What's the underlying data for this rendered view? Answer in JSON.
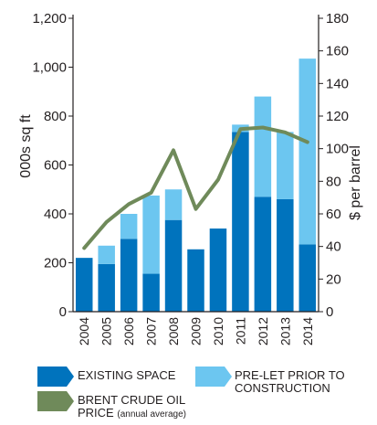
{
  "chart_data": {
    "type": "bar",
    "categories": [
      "2004",
      "2005",
      "2006",
      "2007",
      "2008",
      "2009",
      "2010",
      "2011",
      "2012",
      "2013",
      "2014"
    ],
    "series": [
      {
        "name": "EXISTING SPACE",
        "type": "bar",
        "axis": "left",
        "stack": "space",
        "values": [
          220,
          195,
          298,
          155,
          375,
          255,
          340,
          735,
          470,
          460,
          275
        ]
      },
      {
        "name": "PRE-LET PRIOR TO CONSTRUCTION",
        "type": "bar",
        "axis": "left",
        "stack": "space",
        "values": [
          0,
          75,
          102,
          320,
          125,
          0,
          0,
          30,
          410,
          275,
          760
        ]
      },
      {
        "name": "BRENT CRUDE OIL PRICE (annual average)",
        "type": "line",
        "axis": "right",
        "values": [
          39,
          55,
          66,
          73,
          99,
          63,
          81,
          112,
          113,
          110,
          104
        ]
      }
    ],
    "ylabel": "000s sq ft",
    "ylabel_right": "$ per barrel",
    "ylim": [
      0,
      1200
    ],
    "ylim_right": [
      0,
      180
    ],
    "yticks": [
      "0",
      "200",
      "400",
      "600",
      "800",
      "1,000",
      "1,200"
    ],
    "yticks_right": [
      "0",
      "20",
      "40",
      "60",
      "80",
      "100",
      "120",
      "140",
      "160",
      "180"
    ],
    "grid": false,
    "legend_position": "bottom",
    "colors": {
      "existing": "#0073bd",
      "prelet": "#6cc6f0",
      "oil": "#6f8a5a",
      "axis": "#231f20"
    }
  },
  "legend": {
    "existing": "EXISTING SPACE",
    "prelet_line1": "PRE-LET PRIOR TO",
    "prelet_line2": "CONSTRUCTION",
    "oil_line1": "BRENT CRUDE OIL",
    "oil_line2_main": "PRICE",
    "oil_line2_note": "(annual average)"
  }
}
